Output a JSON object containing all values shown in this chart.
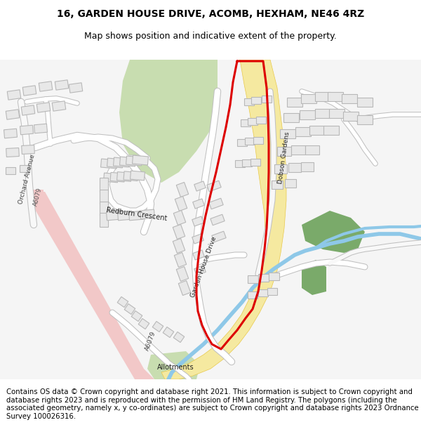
{
  "title_line1": "16, GARDEN HOUSE DRIVE, ACOMB, HEXHAM, NE46 4RZ",
  "title_line2": "Map shows position and indicative extent of the property.",
  "footer_text": "Contains OS data © Crown copyright and database right 2021. This information is subject to Crown copyright and database rights 2023 and is reproduced with the permission of HM Land Registry. The polygons (including the associated geometry, namely x, y co-ordinates) are subject to Crown copyright and database rights 2023 Ordnance Survey 100026316.",
  "background_color": "#ffffff",
  "map_bg": "#f7f7f7",
  "road_yellow_fill": "#f5e9a0",
  "road_yellow_edge": "#e8c84a",
  "road_pink_fill": "#f2c8c8",
  "road_blue": "#8ec8e8",
  "green_park": "#c8ddb0",
  "green_dark": "#7aaa6a",
  "green_allot": "#c8ddb0",
  "building_fill": "#e8e8e8",
  "building_stroke": "#b8b8b8",
  "road_white": "#ffffff",
  "road_grey": "#c8c8c8",
  "road_outline": "#b0b0b0",
  "red_line": "#dd0000",
  "text_dark": "#333333"
}
